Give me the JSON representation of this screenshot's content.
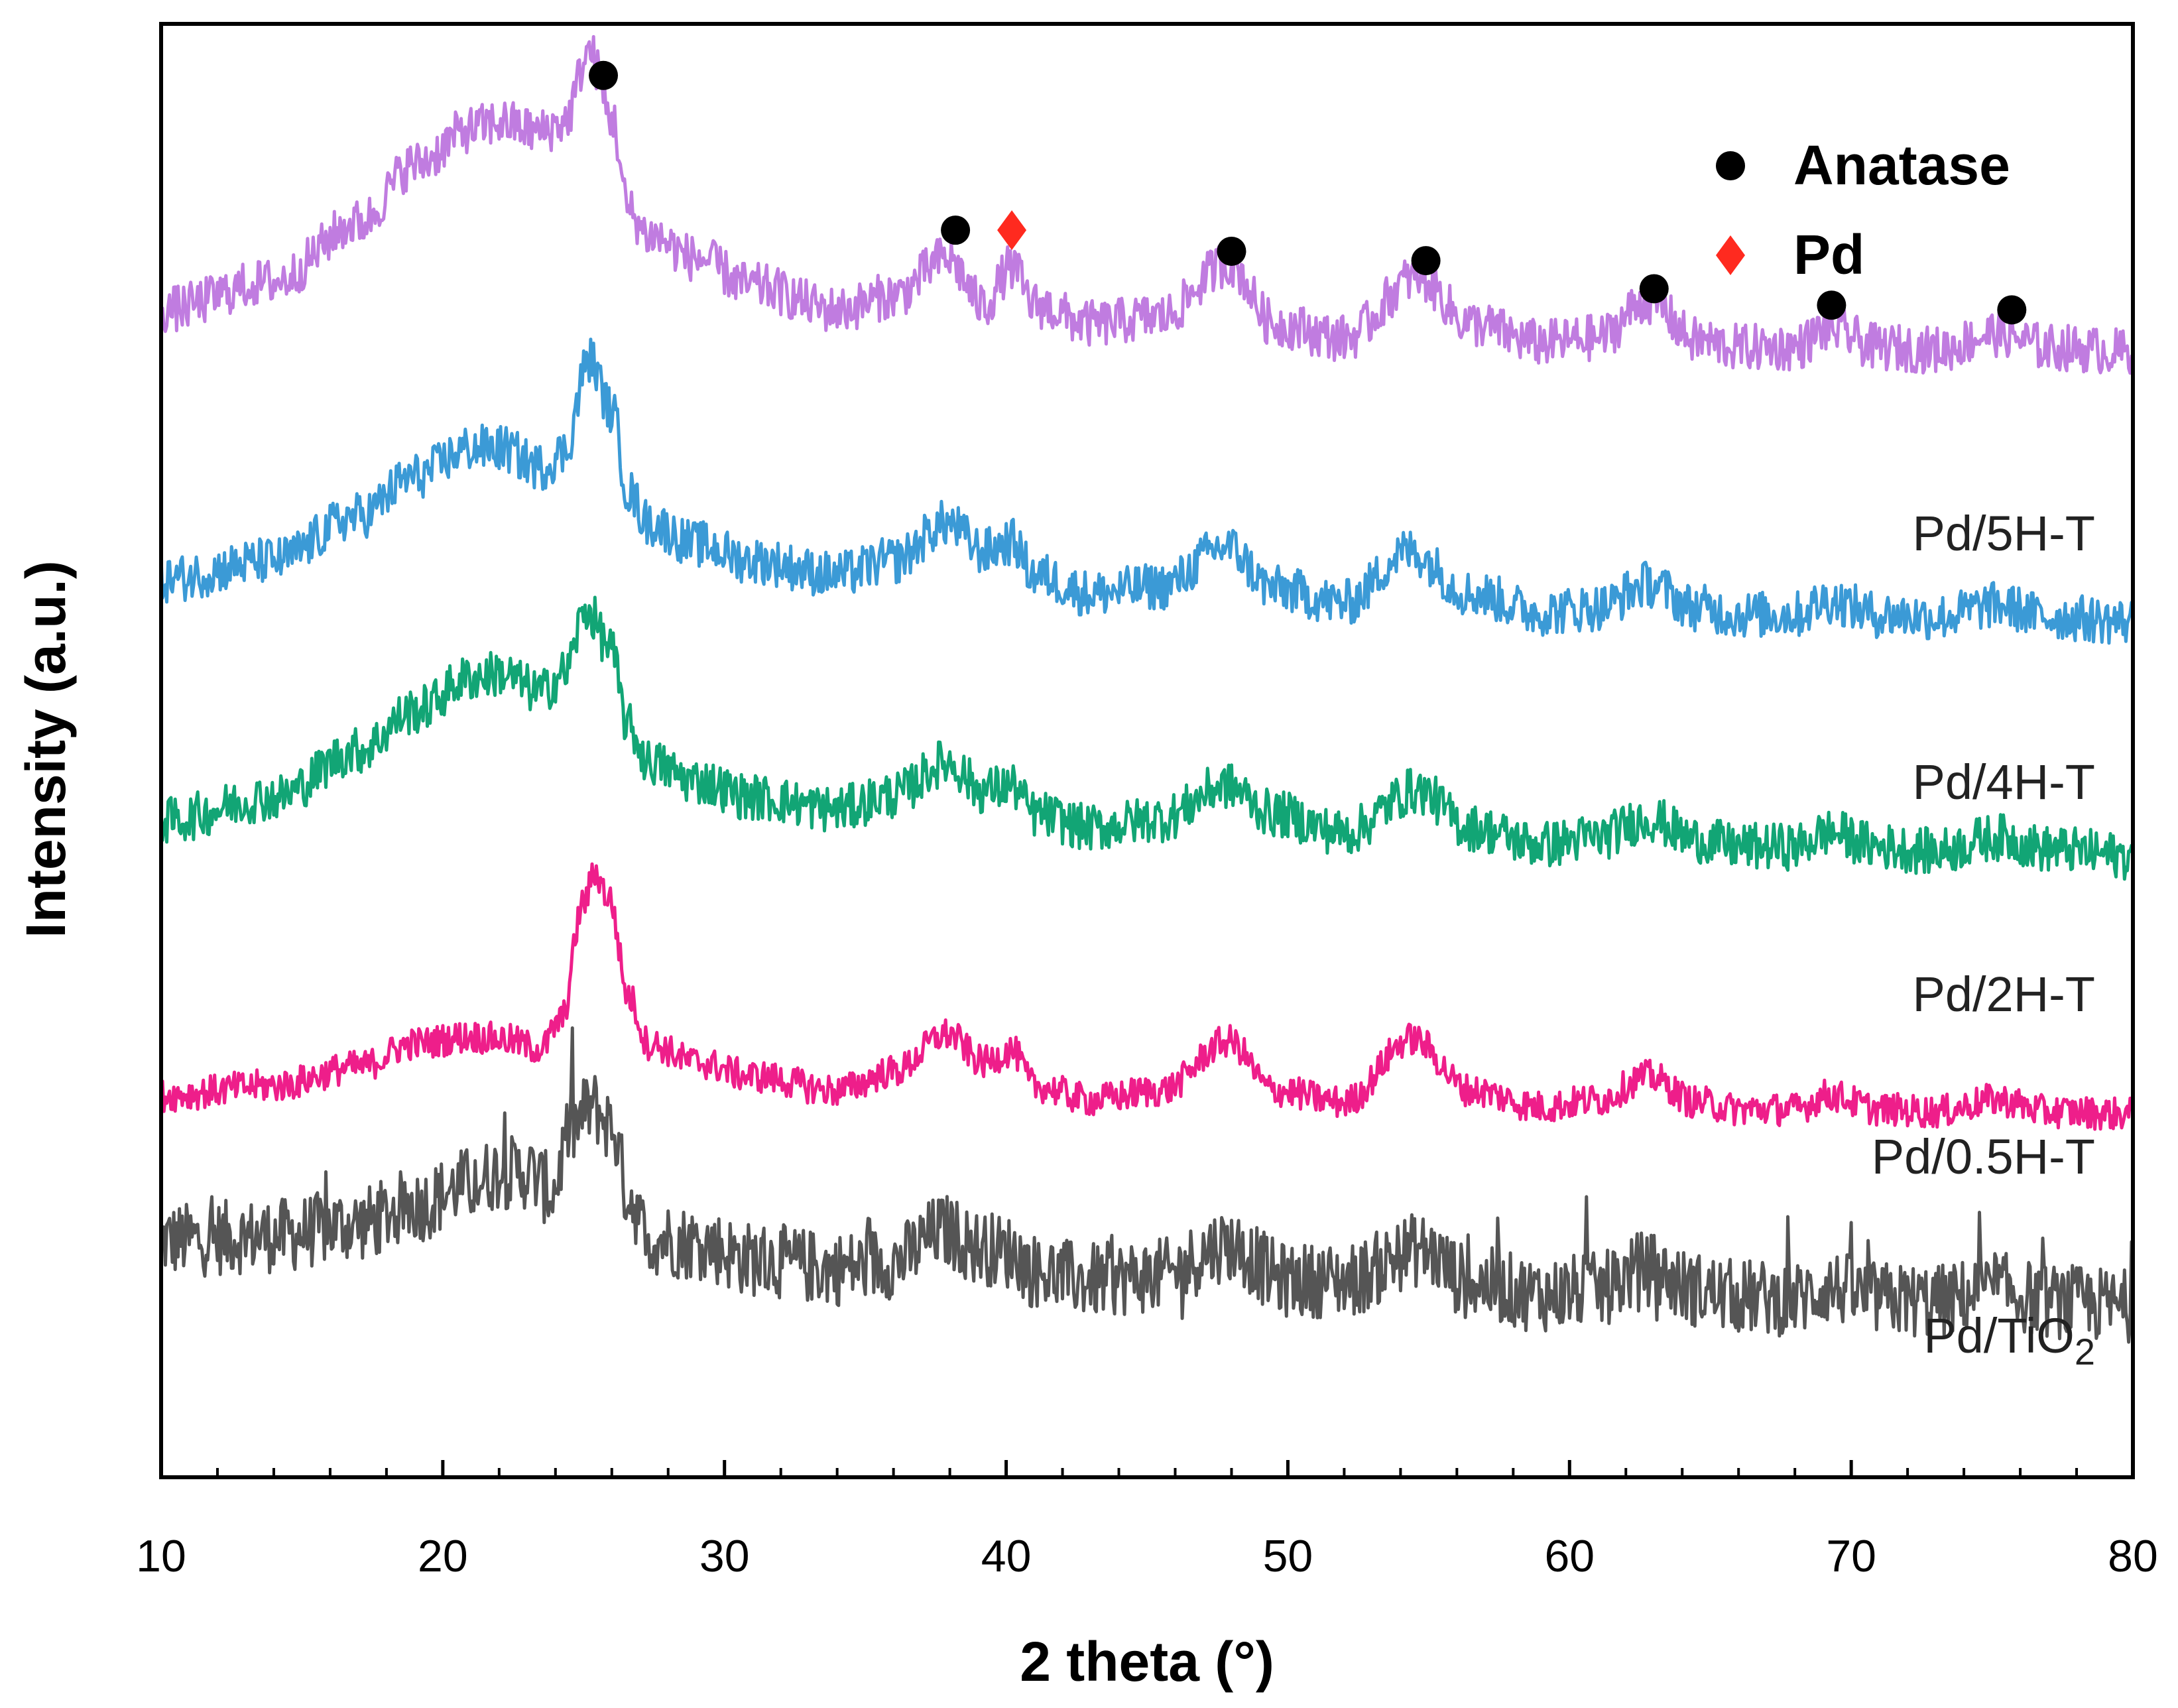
{
  "chart_data": {
    "type": "line",
    "title": "",
    "xlabel": "2 theta (°)",
    "ylabel": "Intensity (a.u.)",
    "xlim": [
      10,
      80
    ],
    "ylim": [
      0,
      6.2
    ],
    "xticks": [
      10,
      20,
      30,
      40,
      50,
      60,
      70,
      80
    ],
    "grid": false,
    "stacked_offsets": true,
    "legend": {
      "position": "top-right",
      "entries": [
        {
          "label": "Anatase",
          "marker": "circle",
          "color": "#000000"
        },
        {
          "label": "Pd",
          "marker": "diamond",
          "color": "#ff2a1f"
        }
      ]
    },
    "series": [
      {
        "name": "Pd/TiO",
        "name_sub": "2",
        "color": "#555555",
        "offset": 0.7,
        "noise": 0.16,
        "x": [
          10,
          14,
          17,
          19,
          21,
          22,
          23,
          23.9,
          24.5,
          25.3,
          26.0,
          26.6,
          27.3,
          29,
          31,
          34,
          36,
          37.8,
          39,
          40.2,
          41,
          43,
          45.5,
          47.8,
          50,
          52,
          54.7,
          56.5,
          59,
          61,
          62.7,
          64.5,
          66,
          68,
          69.2,
          71,
          73,
          75.2,
          77,
          80
        ],
        "values": [
          0.31,
          0.33,
          0.38,
          0.46,
          0.55,
          0.6,
          0.6,
          0.52,
          0.78,
          0.88,
          0.8,
          0.5,
          0.32,
          0.3,
          0.23,
          0.19,
          0.22,
          0.35,
          0.28,
          0.26,
          0.18,
          0.14,
          0.16,
          0.29,
          0.14,
          0.14,
          0.27,
          0.13,
          0.08,
          0.1,
          0.19,
          0.1,
          0.07,
          0.06,
          0.11,
          0.06,
          0.05,
          0.1,
          0.05,
          0.03
        ]
      },
      {
        "name": "Pd/0.5H-T",
        "name_sub": "",
        "color": "#ee1e8a",
        "offset": 1.55,
        "noise": 0.07,
        "x": [
          10,
          14,
          17,
          19,
          21,
          22,
          23.5,
          24.2,
          25.0,
          25.4,
          25.9,
          26.6,
          27.3,
          29,
          31,
          34,
          36,
          37.9,
          39.2,
          40.2,
          41,
          43,
          45.5,
          47.9,
          49.5,
          52,
          54.4,
          56.5,
          59,
          61,
          62.8,
          64.5,
          66,
          68,
          69.2,
          71,
          73,
          75.2,
          77,
          80
        ],
        "values": [
          0.08,
          0.12,
          0.2,
          0.3,
          0.33,
          0.32,
          0.28,
          0.4,
          0.9,
          1.03,
          0.92,
          0.5,
          0.3,
          0.22,
          0.16,
          0.1,
          0.18,
          0.34,
          0.22,
          0.27,
          0.12,
          0.06,
          0.1,
          0.31,
          0.1,
          0.05,
          0.32,
          0.1,
          0.03,
          0.06,
          0.16,
          0.05,
          0.02,
          0.02,
          0.08,
          0.02,
          0.01,
          0.06,
          0.01,
          0.0
        ]
      },
      {
        "name": "Pd/2H-T",
        "name_sub": "",
        "color": "#12a575",
        "offset": 2.65,
        "noise": 0.1,
        "x": [
          10,
          14,
          17,
          19,
          21,
          22,
          23.5,
          24.3,
          25.1,
          25.9,
          26.6,
          27.3,
          29,
          31,
          34,
          36,
          37.9,
          39.2,
          40.2,
          41,
          43,
          45.5,
          47.8,
          49.5,
          52,
          54.6,
          56.5,
          59,
          61,
          62.8,
          64.5,
          66,
          68,
          69.2,
          71,
          73,
          75.2,
          77,
          80
        ],
        "values": [
          0.15,
          0.25,
          0.45,
          0.62,
          0.76,
          0.78,
          0.7,
          0.78,
          1.05,
          0.9,
          0.55,
          0.4,
          0.32,
          0.25,
          0.2,
          0.26,
          0.4,
          0.28,
          0.3,
          0.18,
          0.12,
          0.16,
          0.3,
          0.18,
          0.1,
          0.28,
          0.12,
          0.05,
          0.08,
          0.16,
          0.07,
          0.04,
          0.04,
          0.1,
          0.04,
          0.02,
          0.08,
          0.03,
          0.0
        ]
      },
      {
        "name": "Pd/4H-T",
        "name_sub": "",
        "color": "#3b9ad6",
        "offset": 3.65,
        "noise": 0.1,
        "x": [
          10,
          14,
          17,
          19,
          21,
          22,
          23.5,
          24.3,
          25.2,
          26.0,
          26.6,
          27.3,
          29,
          31,
          34,
          36,
          37.9,
          39.2,
          40.2,
          41,
          43,
          45.5,
          47.8,
          49.5,
          52,
          54.3,
          56.5,
          59,
          61,
          62.8,
          64.5,
          66,
          68,
          69.2,
          71,
          73,
          75.2,
          77,
          80
        ],
        "values": [
          0.18,
          0.26,
          0.45,
          0.62,
          0.74,
          0.74,
          0.66,
          0.72,
          1.12,
          0.9,
          0.55,
          0.42,
          0.33,
          0.26,
          0.2,
          0.26,
          0.42,
          0.3,
          0.34,
          0.2,
          0.12,
          0.15,
          0.32,
          0.14,
          0.08,
          0.3,
          0.12,
          0.04,
          0.06,
          0.16,
          0.06,
          0.03,
          0.03,
          0.09,
          0.03,
          0.02,
          0.07,
          0.02,
          0.0
        ]
      },
      {
        "name": "Pd/5H-T",
        "name_sub": "",
        "color": "#c07ce0",
        "offset": 4.8,
        "noise": 0.1,
        "x": [
          10,
          14,
          17,
          19,
          21,
          22,
          23.5,
          24.3,
          25.2,
          26.0,
          26.6,
          27.3,
          29,
          31,
          34,
          36,
          37.9,
          39.2,
          40.2,
          41,
          43,
          45.5,
          47.9,
          49.5,
          52,
          54.6,
          56.5,
          59,
          61,
          62.8,
          64.5,
          66,
          68,
          69.2,
          71,
          73,
          75.2,
          77,
          80
        ],
        "values": [
          0.18,
          0.3,
          0.55,
          0.8,
          0.95,
          0.98,
          0.94,
          0.98,
          1.28,
          1.0,
          0.6,
          0.5,
          0.4,
          0.28,
          0.18,
          0.24,
          0.4,
          0.2,
          0.36,
          0.2,
          0.12,
          0.15,
          0.38,
          0.12,
          0.06,
          0.32,
          0.12,
          0.04,
          0.06,
          0.22,
          0.05,
          0.02,
          0.02,
          0.1,
          0.02,
          0.01,
          0.08,
          0.02,
          0.0
        ]
      }
    ],
    "annotations": {
      "anatase_markers": [
        {
          "x": 25.7,
          "y": 5.98
        },
        {
          "x": 38.2,
          "y": 5.32
        },
        {
          "x": 48.0,
          "y": 5.23
        },
        {
          "x": 54.9,
          "y": 5.19
        },
        {
          "x": 63.0,
          "y": 5.07
        },
        {
          "x": 69.3,
          "y": 5.0
        },
        {
          "x": 75.7,
          "y": 4.98
        }
      ],
      "pd_markers": [
        {
          "x": 40.2,
          "y": 5.32
        }
      ]
    }
  }
}
